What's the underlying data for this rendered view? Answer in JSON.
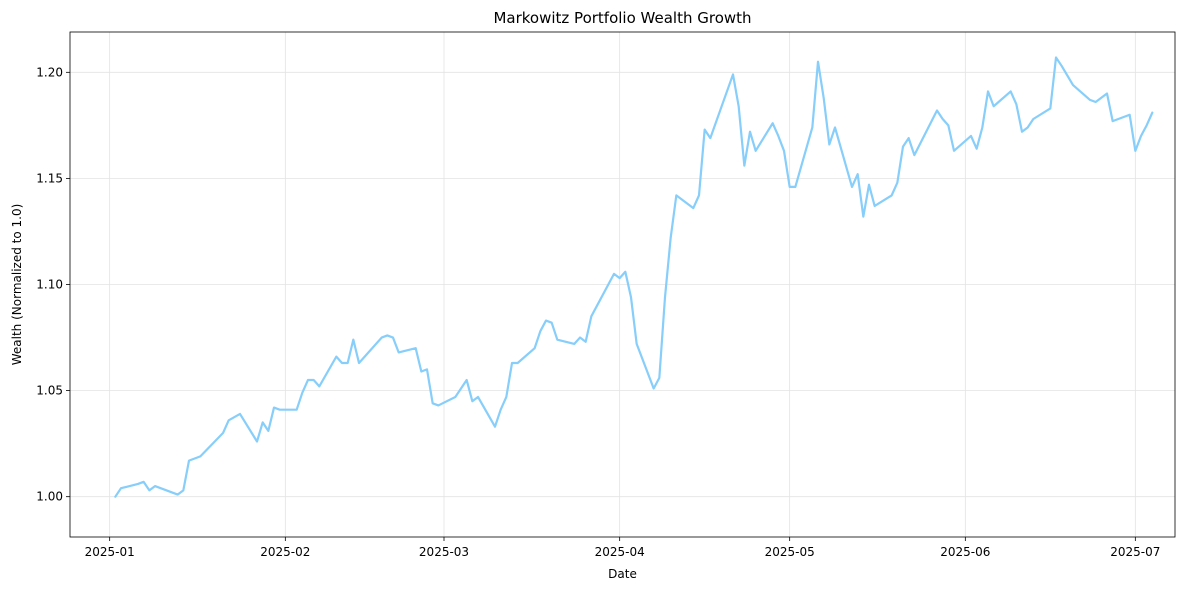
{
  "chart_data": {
    "type": "line",
    "title": "Markowitz Portfolio Wealth Growth",
    "xlabel": "Date",
    "ylabel": "Wealth (Normalized to 1.0)",
    "grid": true,
    "xlim": [
      "2024-12-25",
      "2025-07-08"
    ],
    "ylim": [
      0.981,
      1.219
    ],
    "x_ticks": [
      "2025-01-01",
      "2025-02-01",
      "2025-03-01",
      "2025-04-01",
      "2025-05-01",
      "2025-06-01",
      "2025-07-01"
    ],
    "x_tick_labels": [
      "2025-01",
      "2025-02",
      "2025-03",
      "2025-04",
      "2025-05",
      "2025-06",
      "2025-07"
    ],
    "y_ticks": [
      1.0,
      1.05,
      1.1,
      1.15,
      1.2
    ],
    "y_tick_labels": [
      "1.00",
      "1.05",
      "1.10",
      "1.15",
      "1.20"
    ],
    "series": [
      {
        "color": "#87cefa",
        "points": [
          [
            "2025-01-02",
            1.0
          ],
          [
            "2025-01-03",
            1.004
          ],
          [
            "2025-01-06",
            1.006
          ],
          [
            "2025-01-07",
            1.007
          ],
          [
            "2025-01-08",
            1.003
          ],
          [
            "2025-01-09",
            1.005
          ],
          [
            "2025-01-13",
            1.001
          ],
          [
            "2025-01-14",
            1.003
          ],
          [
            "2025-01-15",
            1.017
          ],
          [
            "2025-01-16",
            1.018
          ],
          [
            "2025-01-17",
            1.019
          ],
          [
            "2025-01-21",
            1.03
          ],
          [
            "2025-01-22",
            1.036
          ],
          [
            "2025-01-24",
            1.039
          ],
          [
            "2025-01-27",
            1.026
          ],
          [
            "2025-01-28",
            1.035
          ],
          [
            "2025-01-29",
            1.031
          ],
          [
            "2025-01-30",
            1.042
          ],
          [
            "2025-01-31",
            1.041
          ],
          [
            "2025-02-03",
            1.041
          ],
          [
            "2025-02-04",
            1.049
          ],
          [
            "2025-02-05",
            1.055
          ],
          [
            "2025-02-06",
            1.055
          ],
          [
            "2025-02-07",
            1.052
          ],
          [
            "2025-02-10",
            1.066
          ],
          [
            "2025-02-11",
            1.063
          ],
          [
            "2025-02-12",
            1.063
          ],
          [
            "2025-02-13",
            1.074
          ],
          [
            "2025-02-14",
            1.063
          ],
          [
            "2025-02-18",
            1.075
          ],
          [
            "2025-02-19",
            1.076
          ],
          [
            "2025-02-20",
            1.075
          ],
          [
            "2025-02-21",
            1.068
          ],
          [
            "2025-02-24",
            1.07
          ],
          [
            "2025-02-25",
            1.059
          ],
          [
            "2025-02-26",
            1.06
          ],
          [
            "2025-02-27",
            1.044
          ],
          [
            "2025-02-28",
            1.043
          ],
          [
            "2025-03-03",
            1.047
          ],
          [
            "2025-03-04",
            1.051
          ],
          [
            "2025-03-05",
            1.055
          ],
          [
            "2025-03-06",
            1.045
          ],
          [
            "2025-03-07",
            1.047
          ],
          [
            "2025-03-10",
            1.033
          ],
          [
            "2025-03-11",
            1.041
          ],
          [
            "2025-03-12",
            1.047
          ],
          [
            "2025-03-13",
            1.063
          ],
          [
            "2025-03-14",
            1.063
          ],
          [
            "2025-03-17",
            1.07
          ],
          [
            "2025-03-18",
            1.078
          ],
          [
            "2025-03-19",
            1.083
          ],
          [
            "2025-03-20",
            1.082
          ],
          [
            "2025-03-21",
            1.074
          ],
          [
            "2025-03-24",
            1.072
          ],
          [
            "2025-03-25",
            1.075
          ],
          [
            "2025-03-26",
            1.073
          ],
          [
            "2025-03-27",
            1.085
          ],
          [
            "2025-03-31",
            1.105
          ],
          [
            "2025-04-01",
            1.103
          ],
          [
            "2025-04-02",
            1.106
          ],
          [
            "2025-04-03",
            1.094
          ],
          [
            "2025-04-04",
            1.072
          ],
          [
            "2025-04-07",
            1.051
          ],
          [
            "2025-04-08",
            1.056
          ],
          [
            "2025-04-09",
            1.094
          ],
          [
            "2025-04-10",
            1.122
          ],
          [
            "2025-04-11",
            1.142
          ],
          [
            "2025-04-14",
            1.136
          ],
          [
            "2025-04-15",
            1.142
          ],
          [
            "2025-04-16",
            1.173
          ],
          [
            "2025-04-17",
            1.169
          ],
          [
            "2025-04-21",
            1.199
          ],
          [
            "2025-04-22",
            1.184
          ],
          [
            "2025-04-23",
            1.156
          ],
          [
            "2025-04-24",
            1.172
          ],
          [
            "2025-04-25",
            1.163
          ],
          [
            "2025-04-28",
            1.176
          ],
          [
            "2025-04-29",
            1.17
          ],
          [
            "2025-04-30",
            1.163
          ],
          [
            "2025-05-01",
            1.146
          ],
          [
            "2025-05-02",
            1.146
          ],
          [
            "2025-05-05",
            1.174
          ],
          [
            "2025-05-06",
            1.205
          ],
          [
            "2025-05-07",
            1.188
          ],
          [
            "2025-05-08",
            1.166
          ],
          [
            "2025-05-09",
            1.174
          ],
          [
            "2025-05-12",
            1.146
          ],
          [
            "2025-05-13",
            1.152
          ],
          [
            "2025-05-14",
            1.132
          ],
          [
            "2025-05-15",
            1.147
          ],
          [
            "2025-05-16",
            1.137
          ],
          [
            "2025-05-19",
            1.142
          ],
          [
            "2025-05-20",
            1.148
          ],
          [
            "2025-05-21",
            1.165
          ],
          [
            "2025-05-22",
            1.169
          ],
          [
            "2025-05-23",
            1.161
          ],
          [
            "2025-05-27",
            1.182
          ],
          [
            "2025-05-28",
            1.178
          ],
          [
            "2025-05-29",
            1.175
          ],
          [
            "2025-05-30",
            1.163
          ],
          [
            "2025-06-02",
            1.17
          ],
          [
            "2025-06-03",
            1.164
          ],
          [
            "2025-06-04",
            1.174
          ],
          [
            "2025-06-05",
            1.191
          ],
          [
            "2025-06-06",
            1.184
          ],
          [
            "2025-06-09",
            1.191
          ],
          [
            "2025-06-10",
            1.185
          ],
          [
            "2025-06-11",
            1.172
          ],
          [
            "2025-06-12",
            1.174
          ],
          [
            "2025-06-13",
            1.178
          ],
          [
            "2025-06-16",
            1.183
          ],
          [
            "2025-06-17",
            1.207
          ],
          [
            "2025-06-18",
            1.203
          ],
          [
            "2025-06-20",
            1.194
          ],
          [
            "2025-06-23",
            1.187
          ],
          [
            "2025-06-24",
            1.186
          ],
          [
            "2025-06-25",
            1.188
          ],
          [
            "2025-06-26",
            1.19
          ],
          [
            "2025-06-27",
            1.177
          ],
          [
            "2025-06-30",
            1.18
          ],
          [
            "2025-07-01",
            1.163
          ],
          [
            "2025-07-02",
            1.17
          ],
          [
            "2025-07-03",
            1.175
          ],
          [
            "2025-07-04",
            1.181
          ]
        ]
      }
    ]
  }
}
